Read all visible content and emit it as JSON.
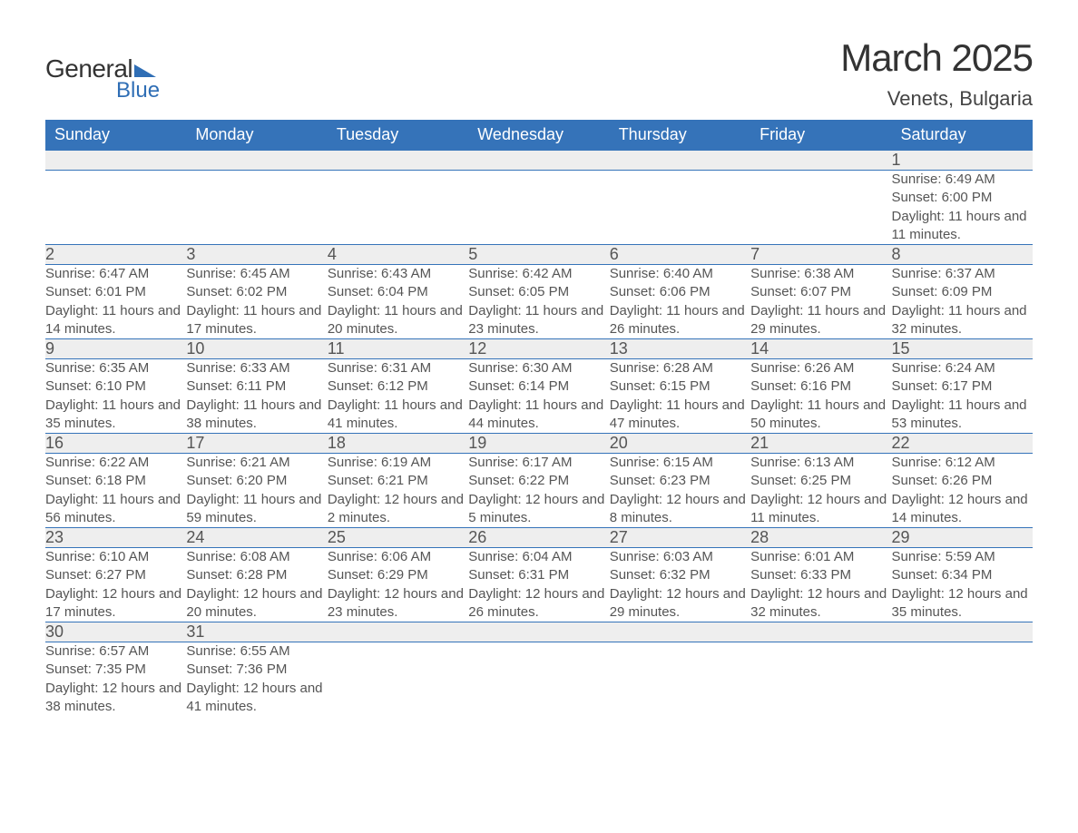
{
  "logo": {
    "word1": "General",
    "word2": "Blue",
    "tri_color": "#2f6eb5"
  },
  "title": "March 2025",
  "location": "Venets, Bulgaria",
  "colors": {
    "header_bg": "#3573b9",
    "header_text": "#ffffff",
    "daynum_bg": "#eeeeee",
    "row_border": "#3573b9",
    "body_text": "#555555",
    "title_text": "#333333"
  },
  "typography": {
    "title_fontsize": 42,
    "subtitle_fontsize": 22,
    "th_fontsize": 18,
    "daynum_fontsize": 18,
    "cell_fontsize": 15
  },
  "days_of_week": [
    "Sunday",
    "Monday",
    "Tuesday",
    "Wednesday",
    "Thursday",
    "Friday",
    "Saturday"
  ],
  "labels": {
    "sunrise": "Sunrise:",
    "sunset": "Sunset:",
    "daylight": "Daylight:"
  },
  "weeks": [
    [
      null,
      null,
      null,
      null,
      null,
      null,
      {
        "d": "1",
        "sr": "6:49 AM",
        "ss": "6:00 PM",
        "dl": "11 hours and 11 minutes."
      }
    ],
    [
      {
        "d": "2",
        "sr": "6:47 AM",
        "ss": "6:01 PM",
        "dl": "11 hours and 14 minutes."
      },
      {
        "d": "3",
        "sr": "6:45 AM",
        "ss": "6:02 PM",
        "dl": "11 hours and 17 minutes."
      },
      {
        "d": "4",
        "sr": "6:43 AM",
        "ss": "6:04 PM",
        "dl": "11 hours and 20 minutes."
      },
      {
        "d": "5",
        "sr": "6:42 AM",
        "ss": "6:05 PM",
        "dl": "11 hours and 23 minutes."
      },
      {
        "d": "6",
        "sr": "6:40 AM",
        "ss": "6:06 PM",
        "dl": "11 hours and 26 minutes."
      },
      {
        "d": "7",
        "sr": "6:38 AM",
        "ss": "6:07 PM",
        "dl": "11 hours and 29 minutes."
      },
      {
        "d": "8",
        "sr": "6:37 AM",
        "ss": "6:09 PM",
        "dl": "11 hours and 32 minutes."
      }
    ],
    [
      {
        "d": "9",
        "sr": "6:35 AM",
        "ss": "6:10 PM",
        "dl": "11 hours and 35 minutes."
      },
      {
        "d": "10",
        "sr": "6:33 AM",
        "ss": "6:11 PM",
        "dl": "11 hours and 38 minutes."
      },
      {
        "d": "11",
        "sr": "6:31 AM",
        "ss": "6:12 PM",
        "dl": "11 hours and 41 minutes."
      },
      {
        "d": "12",
        "sr": "6:30 AM",
        "ss": "6:14 PM",
        "dl": "11 hours and 44 minutes."
      },
      {
        "d": "13",
        "sr": "6:28 AM",
        "ss": "6:15 PM",
        "dl": "11 hours and 47 minutes."
      },
      {
        "d": "14",
        "sr": "6:26 AM",
        "ss": "6:16 PM",
        "dl": "11 hours and 50 minutes."
      },
      {
        "d": "15",
        "sr": "6:24 AM",
        "ss": "6:17 PM",
        "dl": "11 hours and 53 minutes."
      }
    ],
    [
      {
        "d": "16",
        "sr": "6:22 AM",
        "ss": "6:18 PM",
        "dl": "11 hours and 56 minutes."
      },
      {
        "d": "17",
        "sr": "6:21 AM",
        "ss": "6:20 PM",
        "dl": "11 hours and 59 minutes."
      },
      {
        "d": "18",
        "sr": "6:19 AM",
        "ss": "6:21 PM",
        "dl": "12 hours and 2 minutes."
      },
      {
        "d": "19",
        "sr": "6:17 AM",
        "ss": "6:22 PM",
        "dl": "12 hours and 5 minutes."
      },
      {
        "d": "20",
        "sr": "6:15 AM",
        "ss": "6:23 PM",
        "dl": "12 hours and 8 minutes."
      },
      {
        "d": "21",
        "sr": "6:13 AM",
        "ss": "6:25 PM",
        "dl": "12 hours and 11 minutes."
      },
      {
        "d": "22",
        "sr": "6:12 AM",
        "ss": "6:26 PM",
        "dl": "12 hours and 14 minutes."
      }
    ],
    [
      {
        "d": "23",
        "sr": "6:10 AM",
        "ss": "6:27 PM",
        "dl": "12 hours and 17 minutes."
      },
      {
        "d": "24",
        "sr": "6:08 AM",
        "ss": "6:28 PM",
        "dl": "12 hours and 20 minutes."
      },
      {
        "d": "25",
        "sr": "6:06 AM",
        "ss": "6:29 PM",
        "dl": "12 hours and 23 minutes."
      },
      {
        "d": "26",
        "sr": "6:04 AM",
        "ss": "6:31 PM",
        "dl": "12 hours and 26 minutes."
      },
      {
        "d": "27",
        "sr": "6:03 AM",
        "ss": "6:32 PM",
        "dl": "12 hours and 29 minutes."
      },
      {
        "d": "28",
        "sr": "6:01 AM",
        "ss": "6:33 PM",
        "dl": "12 hours and 32 minutes."
      },
      {
        "d": "29",
        "sr": "5:59 AM",
        "ss": "6:34 PM",
        "dl": "12 hours and 35 minutes."
      }
    ],
    [
      {
        "d": "30",
        "sr": "6:57 AM",
        "ss": "7:35 PM",
        "dl": "12 hours and 38 minutes."
      },
      {
        "d": "31",
        "sr": "6:55 AM",
        "ss": "7:36 PM",
        "dl": "12 hours and 41 minutes."
      },
      null,
      null,
      null,
      null,
      null
    ]
  ]
}
